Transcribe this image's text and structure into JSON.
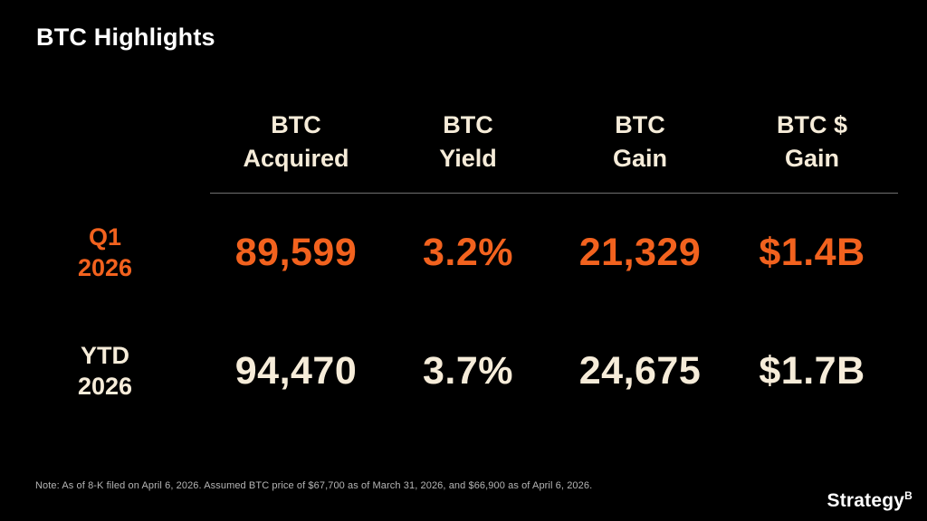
{
  "slide": {
    "title": "BTC Highlights",
    "note": "Note: As of 8-K filed on April 6, 2026. Assumed BTC price of $67,700 as of March 31, 2026, and $66,900 as of April 6, 2026.",
    "logo": {
      "text": "Strategy",
      "symbol": "B"
    }
  },
  "colors": {
    "background": "#000000",
    "title": "#ffffff",
    "cream": "#f6ecd9",
    "orange": "#f2621e",
    "divider": "#6f6f6f",
    "note": "#b5b5b5",
    "logo": "#ffffff"
  },
  "table": {
    "headers": [
      {
        "line1": "BTC",
        "line2": "Acquired"
      },
      {
        "line1": "BTC",
        "line2": "Yield"
      },
      {
        "line1": "BTC",
        "line2": "Gain"
      },
      {
        "line1": "BTC $",
        "line2": "Gain"
      }
    ],
    "rows": [
      {
        "label_line1": "Q1",
        "label_line2": "2026",
        "values": [
          "89,599",
          "3.2%",
          "21,329",
          "$1.4B"
        ]
      },
      {
        "label_line1": "YTD",
        "label_line2": "2026",
        "values": [
          "94,470",
          "3.7%",
          "24,675",
          "$1.7B"
        ]
      }
    ]
  },
  "chart_data": {
    "type": "table",
    "title": "BTC Highlights",
    "columns": [
      "",
      "BTC Acquired",
      "BTC Yield",
      "BTC Gain",
      "BTC $ Gain"
    ],
    "rows": [
      [
        "Q1 2026",
        "89,599",
        "3.2%",
        "21,329",
        "$1.4B"
      ],
      [
        "YTD 2026",
        "94,470",
        "3.7%",
        "24,675",
        "$1.7B"
      ]
    ]
  }
}
